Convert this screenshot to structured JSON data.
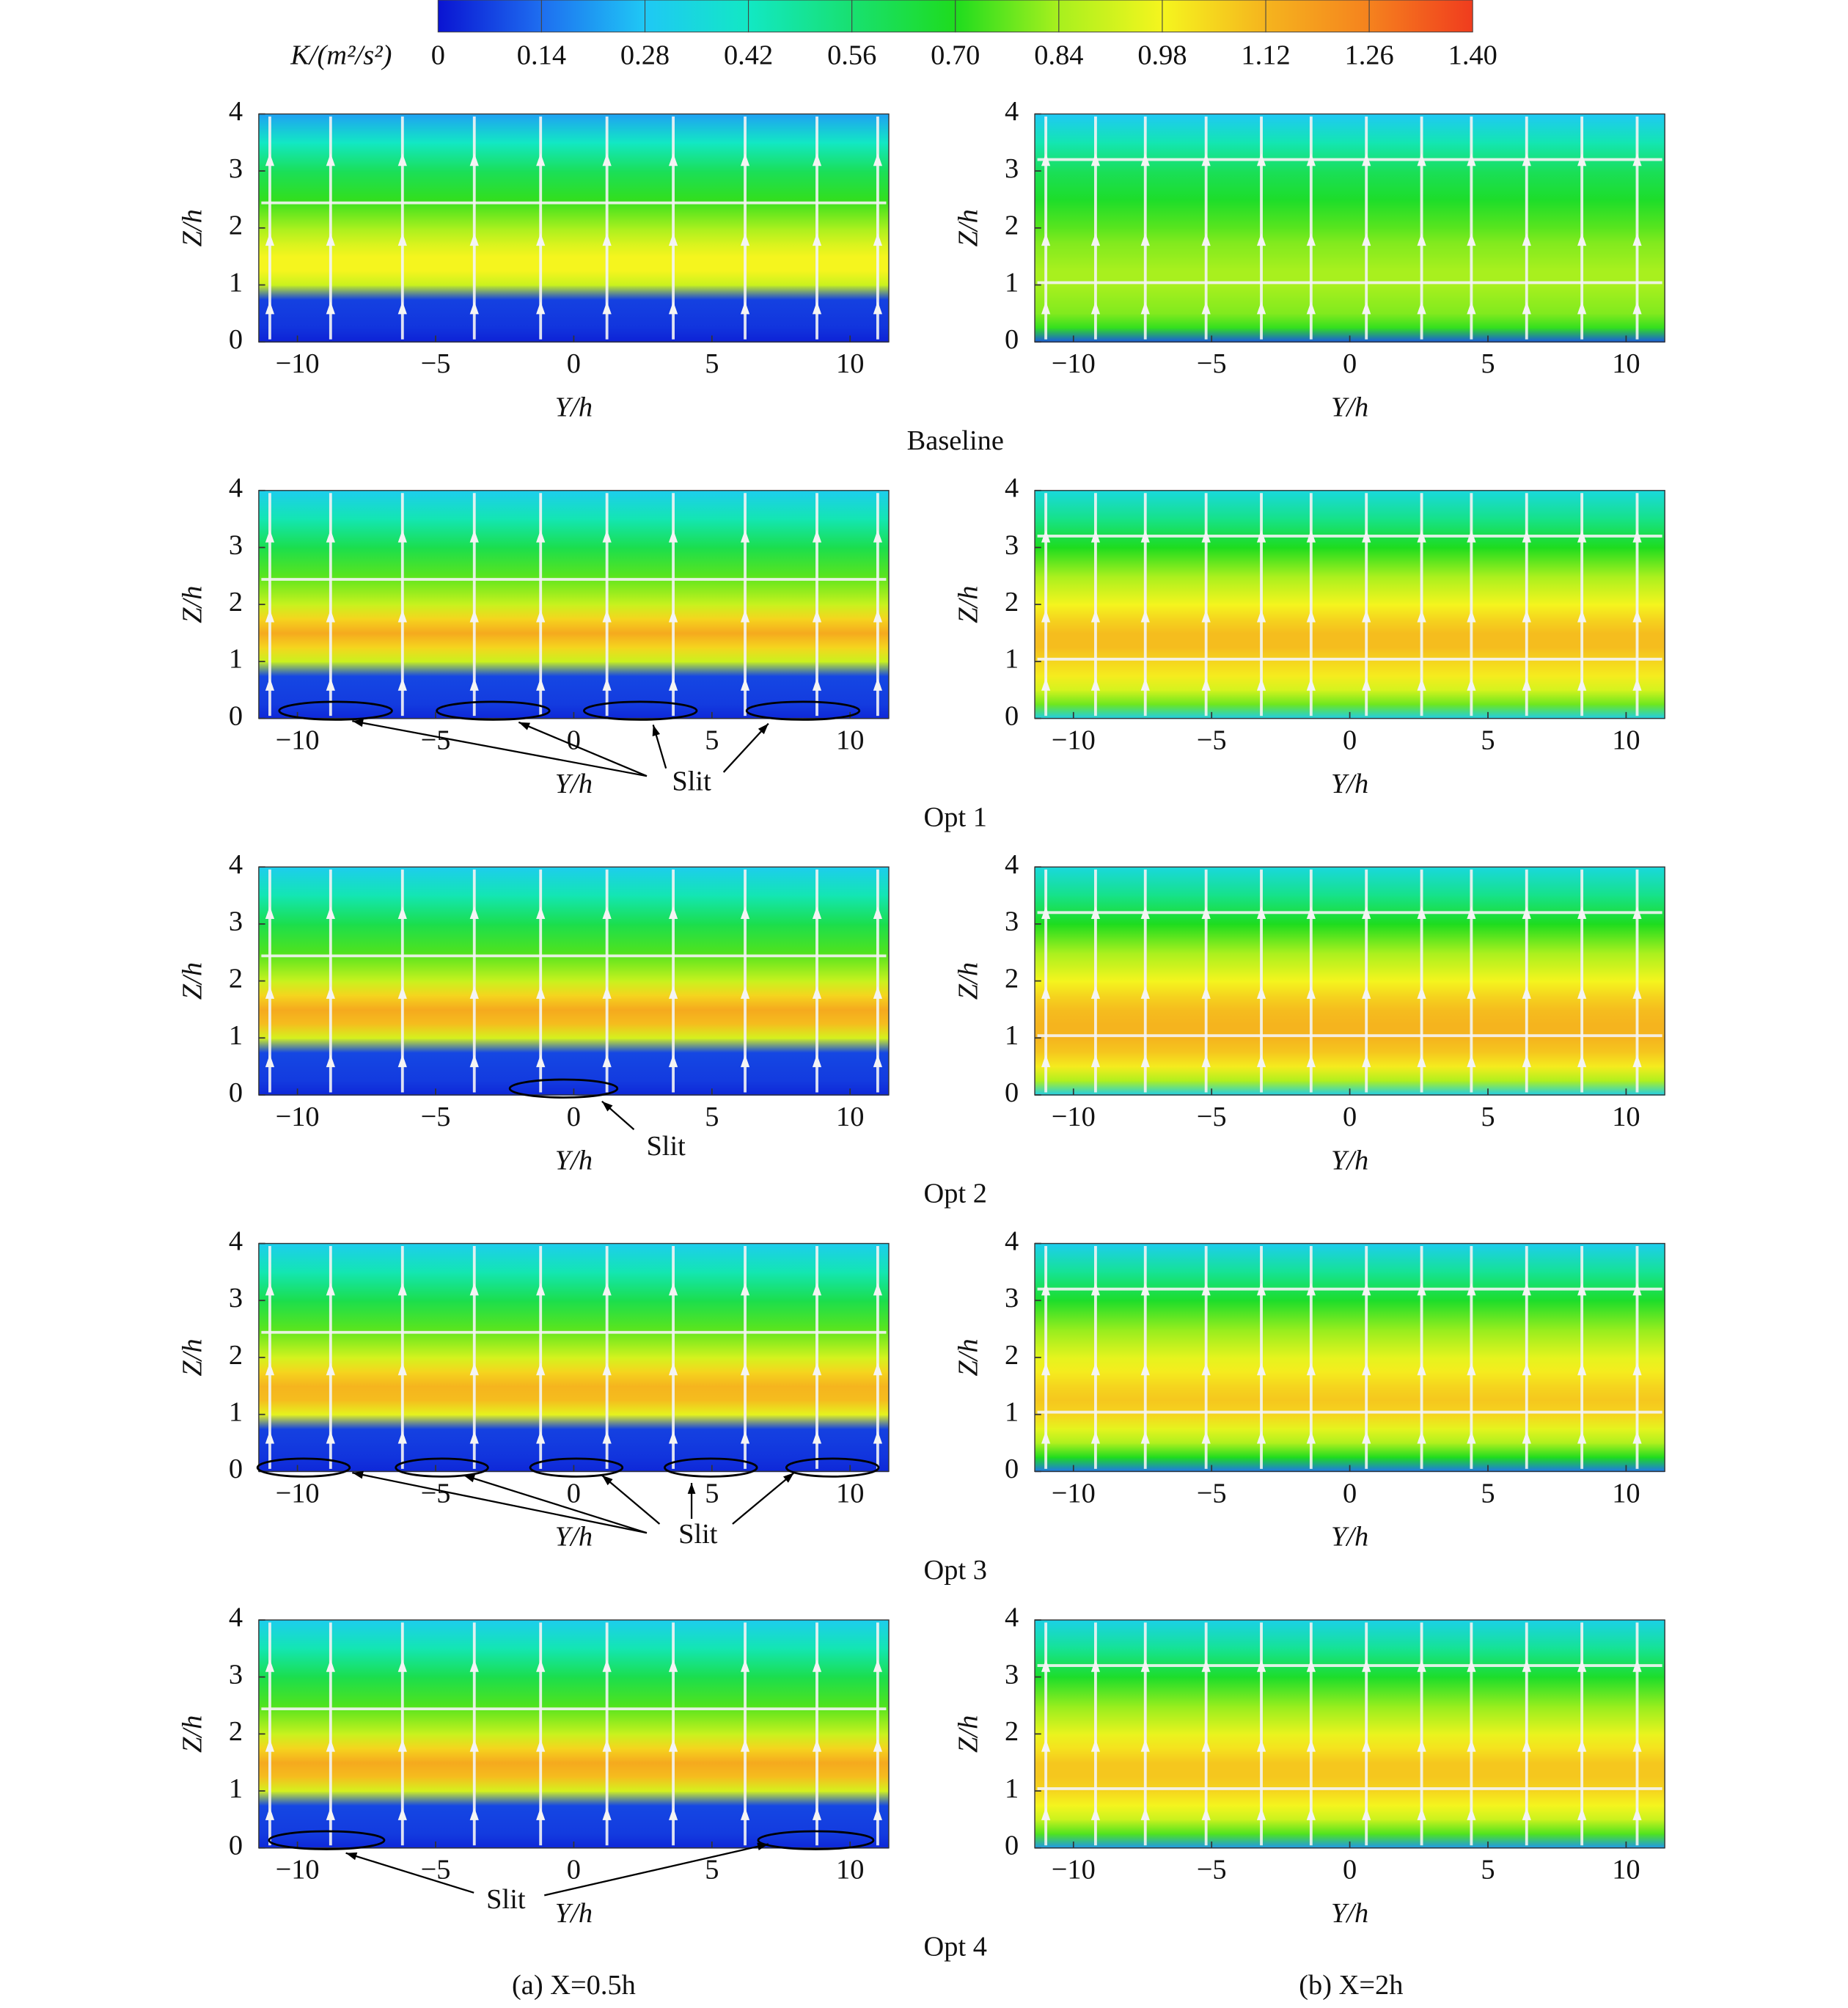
{
  "colorbar": {
    "label": "K/(m²/s²)",
    "lim": [
      0,
      1.4
    ],
    "ticks": [
      0,
      0.14,
      0.28,
      0.42,
      0.56,
      {
        "value": 0.7,
        "label": "0.70"
      },
      0.84,
      0.98,
      1.12,
      1.26,
      {
        "value": 1.4,
        "label": "1.40"
      }
    ],
    "colors": [
      "#0a14d2",
      "#1e6ef0",
      "#1fc8f5",
      "#12e8c4",
      "#18e070",
      "#1edc1e",
      "#a8f01e",
      "#f5f51e",
      "#f5b41e",
      "#f5821e",
      "#f03c1e"
    ]
  },
  "row_captions": [
    "Baseline",
    "Opt 1",
    "Opt 2",
    "Opt 3",
    "Opt 4"
  ],
  "column_captions": [
    "(a) X=0.5h",
    "(b) X=2h"
  ],
  "chart_data": [
    {
      "type": "heatmap",
      "xlabel": "Y/h",
      "ylabel": "Z/h",
      "xlim": [
        -11.4,
        11.4
      ],
      "ylim": [
        0,
        4
      ],
      "xticks": [
        {
          "value": -10,
          "label": "−10"
        },
        {
          "value": -5,
          "label": "−5"
        },
        0,
        5,
        10
      ],
      "yticks": [
        0,
        1,
        2,
        3,
        4
      ],
      "y": [
        0,
        0.25,
        0.5,
        0.75,
        1,
        1.25,
        1.5,
        1.75,
        2,
        2.5,
        3,
        3.5,
        4
      ],
      "values": [
        0.02,
        0.05,
        0.06,
        0.07,
        0.9,
        0.98,
        0.98,
        0.92,
        0.84,
        0.72,
        0.6,
        0.42,
        0.22
      ]
    },
    {
      "type": "heatmap",
      "xlabel": "Y/h",
      "ylabel": "Z/h",
      "xlim": [
        -11.4,
        11.4
      ],
      "ylim": [
        0,
        4
      ],
      "xticks": [
        {
          "value": -10,
          "label": "−10"
        },
        {
          "value": -5,
          "label": "−5"
        },
        0,
        5,
        10
      ],
      "yticks": [
        0,
        1,
        2,
        3,
        4
      ],
      "y": [
        0,
        0.25,
        0.5,
        0.75,
        1,
        1.25,
        1.5,
        1.75,
        2,
        2.5,
        3,
        3.5,
        4
      ],
      "values": [
        0.1,
        0.72,
        0.8,
        0.82,
        0.84,
        0.84,
        0.82,
        0.8,
        0.76,
        0.68,
        0.6,
        0.45,
        0.28
      ]
    },
    {
      "type": "heatmap",
      "xlabel": "Y/h",
      "ylabel": "Z/h",
      "xlim": [
        -11.4,
        11.4
      ],
      "ylim": [
        0,
        4
      ],
      "xticks": [
        {
          "value": -10,
          "label": "−10"
        },
        {
          "value": -5,
          "label": "−5"
        },
        0,
        5,
        10
      ],
      "yticks": [
        0,
        1,
        2,
        3,
        4
      ],
      "y": [
        0,
        0.25,
        0.5,
        0.75,
        1,
        1.25,
        1.5,
        1.75,
        2,
        2.5,
        3,
        3.5,
        4
      ],
      "values": [
        0.03,
        0.06,
        0.07,
        0.08,
        0.9,
        1.05,
        1.15,
        1.05,
        0.9,
        0.76,
        0.62,
        0.45,
        0.3
      ],
      "annotation": "Slit"
    },
    {
      "type": "heatmap",
      "xlabel": "Y/h",
      "ylabel": "Z/h",
      "xlim": [
        -11.4,
        11.4
      ],
      "ylim": [
        0,
        4
      ],
      "xticks": [
        {
          "value": -10,
          "label": "−10"
        },
        {
          "value": -5,
          "label": "−5"
        },
        0,
        5,
        10
      ],
      "yticks": [
        0,
        1,
        2,
        3,
        4
      ],
      "y": [
        0,
        0.25,
        0.5,
        0.75,
        1,
        1.25,
        1.5,
        1.75,
        2,
        2.5,
        3,
        3.5,
        4
      ],
      "values": [
        0.3,
        0.78,
        0.92,
        1.0,
        1.05,
        1.1,
        1.1,
        1.05,
        0.98,
        0.84,
        0.7,
        0.52,
        0.35
      ]
    },
    {
      "type": "heatmap",
      "xlabel": "Y/h",
      "ylabel": "Z/h",
      "xlim": [
        -11.4,
        11.4
      ],
      "ylim": [
        0,
        4
      ],
      "xticks": [
        {
          "value": -10,
          "label": "−10"
        },
        {
          "value": -5,
          "label": "−5"
        },
        0,
        5,
        10
      ],
      "yticks": [
        0,
        1,
        2,
        3,
        4
      ],
      "y": [
        0,
        0.25,
        0.5,
        0.75,
        1,
        1.25,
        1.5,
        1.75,
        2,
        2.5,
        3,
        3.5,
        4
      ],
      "values": [
        0.03,
        0.06,
        0.07,
        0.08,
        0.92,
        1.1,
        1.15,
        1.05,
        0.9,
        0.75,
        0.62,
        0.45,
        0.3
      ],
      "annotation": "Slit"
    },
    {
      "type": "heatmap",
      "xlabel": "Y/h",
      "ylabel": "Z/h",
      "xlim": [
        -11.4,
        11.4
      ],
      "ylim": [
        0,
        4
      ],
      "xticks": [
        {
          "value": -10,
          "label": "−10"
        },
        {
          "value": -5,
          "label": "−5"
        },
        0,
        5,
        10
      ],
      "yticks": [
        0,
        1,
        2,
        3,
        4
      ],
      "y": [
        0,
        0.25,
        0.5,
        0.75,
        1,
        1.25,
        1.5,
        1.75,
        2,
        2.5,
        3,
        3.5,
        4
      ],
      "values": [
        0.3,
        0.85,
        1.0,
        1.08,
        1.12,
        1.12,
        1.1,
        1.05,
        0.98,
        0.84,
        0.7,
        0.52,
        0.35
      ]
    },
    {
      "type": "heatmap",
      "xlabel": "Y/h",
      "ylabel": "Z/h",
      "xlim": [
        -11.4,
        11.4
      ],
      "ylim": [
        0,
        4
      ],
      "xticks": [
        {
          "value": -10,
          "label": "−10"
        },
        {
          "value": -5,
          "label": "−5"
        },
        0,
        5,
        10
      ],
      "yticks": [
        0,
        1,
        2,
        3,
        4
      ],
      "y": [
        0,
        0.25,
        0.5,
        0.75,
        1,
        1.25,
        1.5,
        1.75,
        2,
        2.5,
        3,
        3.5,
        4
      ],
      "values": [
        0.03,
        0.05,
        0.06,
        0.07,
        0.95,
        1.1,
        1.12,
        1.05,
        0.92,
        0.76,
        0.62,
        0.45,
        0.3
      ],
      "annotation": "Slit"
    },
    {
      "type": "heatmap",
      "xlabel": "Y/h",
      "ylabel": "Z/h",
      "xlim": [
        -11.4,
        11.4
      ],
      "ylim": [
        0,
        4
      ],
      "xticks": [
        {
          "value": -10,
          "label": "−10"
        },
        {
          "value": -5,
          "label": "−5"
        },
        0,
        5,
        10
      ],
      "yticks": [
        0,
        1,
        2,
        3,
        4
      ],
      "y": [
        0,
        0.25,
        0.5,
        0.75,
        1,
        1.25,
        1.5,
        1.75,
        2,
        2.5,
        3,
        3.5,
        4
      ],
      "values": [
        0.15,
        0.7,
        0.85,
        0.95,
        1.05,
        1.08,
        1.05,
        1.0,
        0.95,
        0.82,
        0.68,
        0.5,
        0.3
      ]
    },
    {
      "type": "heatmap",
      "xlabel": "Y/h",
      "ylabel": "Z/h",
      "xlim": [
        -11.4,
        11.4
      ],
      "ylim": [
        0,
        4
      ],
      "xticks": [
        {
          "value": -10,
          "label": "−10"
        },
        {
          "value": -5,
          "label": "−5"
        },
        0,
        5,
        10
      ],
      "yticks": [
        0,
        1,
        2,
        3,
        4
      ],
      "y": [
        0,
        0.25,
        0.5,
        0.75,
        1,
        1.25,
        1.5,
        1.75,
        2,
        2.5,
        3,
        3.5,
        4
      ],
      "values": [
        0.03,
        0.06,
        0.07,
        0.08,
        0.92,
        1.1,
        1.15,
        1.05,
        0.9,
        0.75,
        0.62,
        0.45,
        0.3
      ],
      "annotation": "Slit"
    },
    {
      "type": "heatmap",
      "xlabel": "Y/h",
      "ylabel": "Z/h",
      "xlim": [
        -11.4,
        11.4
      ],
      "ylim": [
        0,
        4
      ],
      "xticks": [
        {
          "value": -10,
          "label": "−10"
        },
        {
          "value": -5,
          "label": "−5"
        },
        0,
        5,
        10
      ],
      "yticks": [
        0,
        1,
        2,
        3,
        4
      ],
      "y": [
        0,
        0.25,
        0.5,
        0.75,
        1,
        1.25,
        1.5,
        1.75,
        2,
        2.5,
        3,
        3.5,
        4
      ],
      "values": [
        0.2,
        0.75,
        0.9,
        0.98,
        1.05,
        1.08,
        1.08,
        1.02,
        0.96,
        0.82,
        0.68,
        0.5,
        0.32
      ]
    }
  ]
}
